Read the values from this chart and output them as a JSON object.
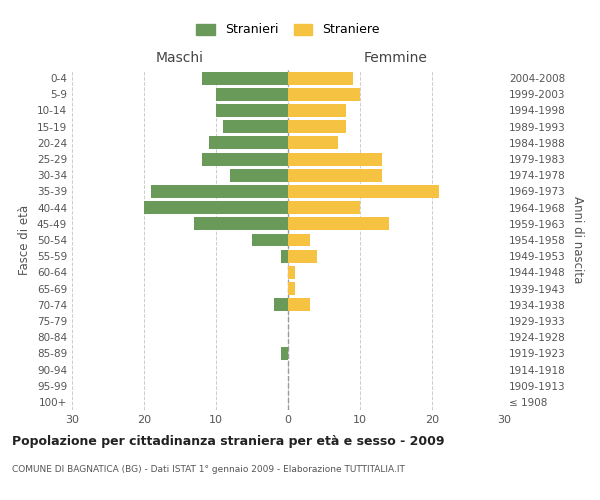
{
  "age_groups": [
    "100+",
    "95-99",
    "90-94",
    "85-89",
    "80-84",
    "75-79",
    "70-74",
    "65-69",
    "60-64",
    "55-59",
    "50-54",
    "45-49",
    "40-44",
    "35-39",
    "30-34",
    "25-29",
    "20-24",
    "15-19",
    "10-14",
    "5-9",
    "0-4"
  ],
  "birth_years": [
    "≤ 1908",
    "1909-1913",
    "1914-1918",
    "1919-1923",
    "1924-1928",
    "1929-1933",
    "1934-1938",
    "1939-1943",
    "1944-1948",
    "1949-1953",
    "1954-1958",
    "1959-1963",
    "1964-1968",
    "1969-1973",
    "1974-1978",
    "1979-1983",
    "1984-1988",
    "1989-1993",
    "1994-1998",
    "1999-2003",
    "2004-2008"
  ],
  "males": [
    0,
    0,
    0,
    1,
    0,
    0,
    2,
    0,
    0,
    1,
    5,
    13,
    20,
    19,
    8,
    12,
    11,
    9,
    10,
    10,
    12
  ],
  "females": [
    0,
    0,
    0,
    0,
    0,
    0,
    3,
    1,
    1,
    4,
    3,
    14,
    10,
    21,
    13,
    13,
    7,
    8,
    8,
    10,
    9
  ],
  "male_color": "#6a9a5a",
  "female_color": "#f5c242",
  "background_color": "#ffffff",
  "grid_color": "#cccccc",
  "title": "Popolazione per cittadinanza straniera per età e sesso - 2009",
  "subtitle": "COMUNE DI BAGNATICA (BG) - Dati ISTAT 1° gennaio 2009 - Elaborazione TUTTITALIA.IT",
  "xlabel_left": "Maschi",
  "xlabel_right": "Femmine",
  "ylabel_left": "Fasce di età",
  "ylabel_right": "Anni di nascita",
  "legend_male": "Stranieri",
  "legend_female": "Straniere",
  "xlim": 30,
  "bar_height": 0.8
}
